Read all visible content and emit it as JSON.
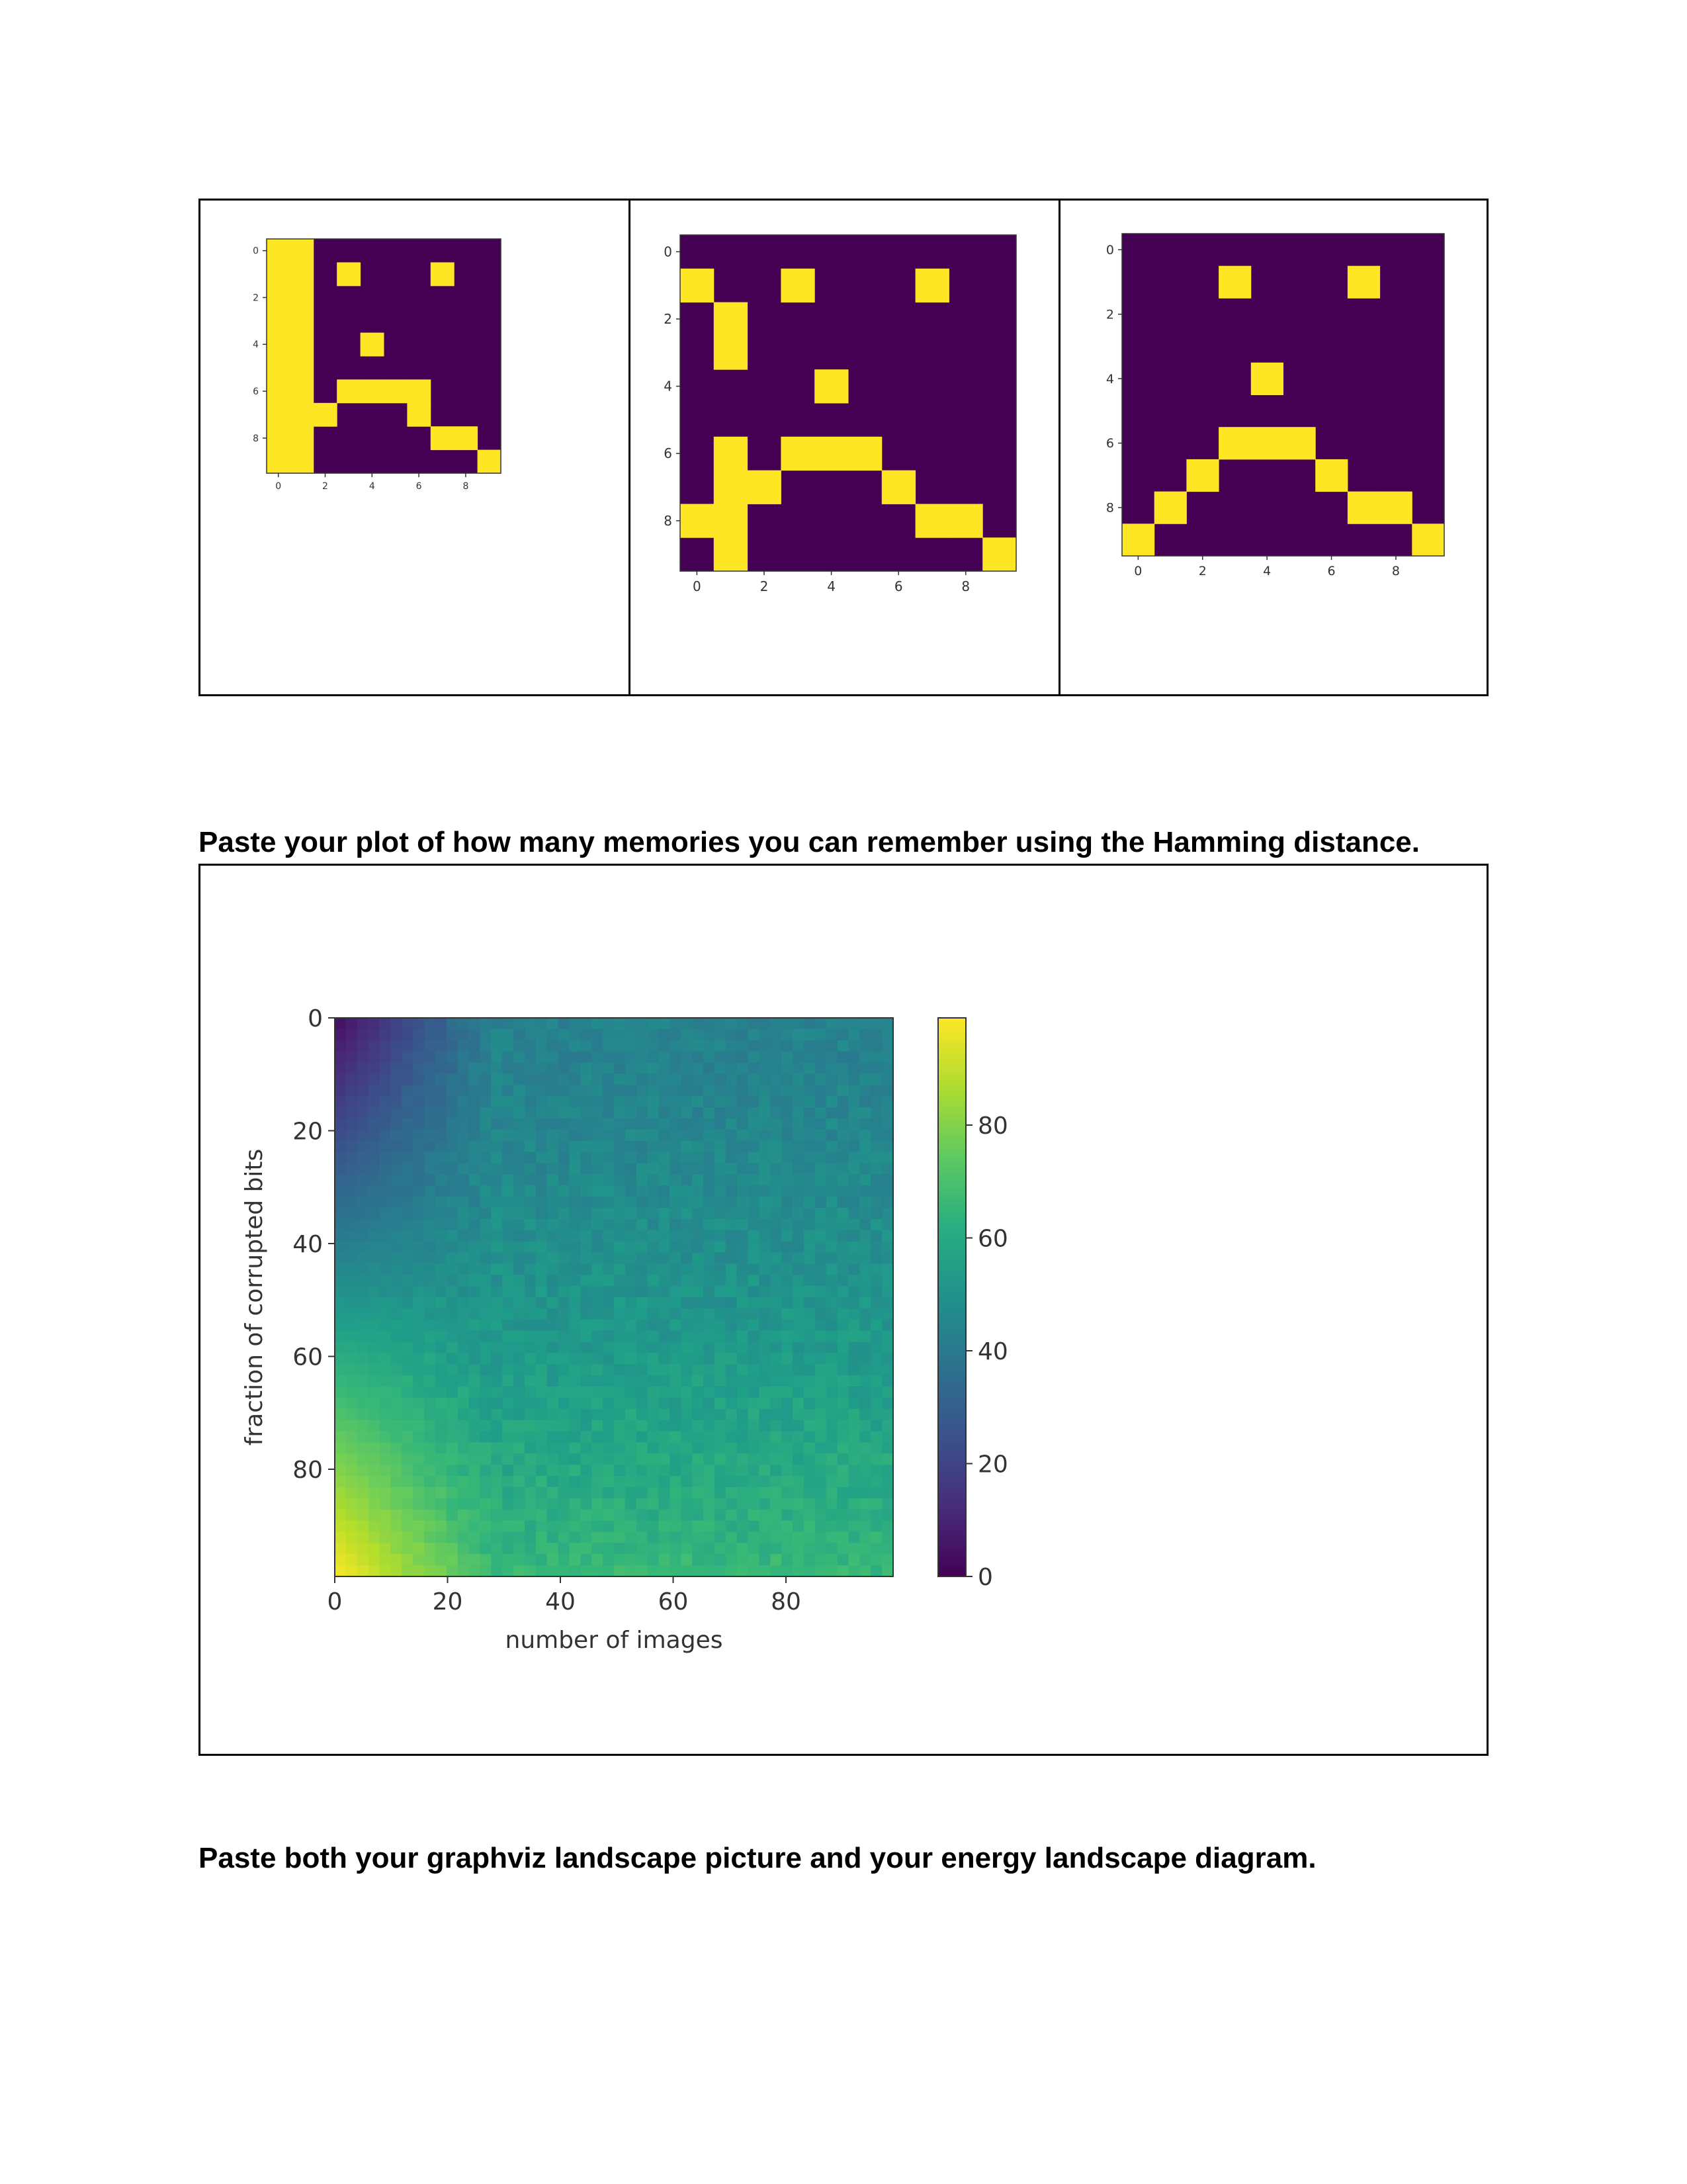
{
  "headings": {
    "hamming_plot": "Paste your plot of how many memories you can remember using the Hamming distance.",
    "graphviz": "Paste both your graphviz landscape picture and your energy landscape diagram."
  },
  "colors": {
    "viridis_low": "#440154",
    "viridis_high": "#fde725"
  },
  "chart_data": [
    {
      "type": "heatmap",
      "title": "",
      "xlabel": "",
      "ylabel": "",
      "x_ticks": [
        "0",
        "2",
        "4",
        "6",
        "8"
      ],
      "y_ticks": [
        "0",
        "2",
        "4",
        "6",
        "8"
      ],
      "grid_size": 10,
      "on_cells": [
        [
          0,
          0
        ],
        [
          0,
          1
        ],
        [
          0,
          2
        ],
        [
          0,
          3
        ],
        [
          0,
          4
        ],
        [
          0,
          5
        ],
        [
          0,
          6
        ],
        [
          0,
          7
        ],
        [
          0,
          8
        ],
        [
          0,
          9
        ],
        [
          1,
          0
        ],
        [
          1,
          1
        ],
        [
          1,
          2
        ],
        [
          1,
          3
        ],
        [
          1,
          4
        ],
        [
          1,
          5
        ],
        [
          1,
          6
        ],
        [
          1,
          7
        ],
        [
          1,
          8
        ],
        [
          1,
          9
        ],
        [
          3,
          1
        ],
        [
          7,
          1
        ],
        [
          4,
          4
        ],
        [
          3,
          6
        ],
        [
          4,
          6
        ],
        [
          5,
          6
        ],
        [
          6,
          6
        ],
        [
          2,
          7
        ],
        [
          6,
          7
        ],
        [
          7,
          8
        ],
        [
          8,
          8
        ],
        [
          9,
          9
        ]
      ]
    },
    {
      "type": "heatmap",
      "title": "",
      "xlabel": "",
      "ylabel": "",
      "x_ticks": [
        "0",
        "2",
        "4",
        "6",
        "8"
      ],
      "y_ticks": [
        "0",
        "2",
        "4",
        "6",
        "8"
      ],
      "grid_size": 10,
      "on_cells": [
        [
          0,
          1
        ],
        [
          3,
          1
        ],
        [
          7,
          1
        ],
        [
          1,
          2
        ],
        [
          1,
          3
        ],
        [
          4,
          4
        ],
        [
          1,
          6
        ],
        [
          3,
          6
        ],
        [
          4,
          6
        ],
        [
          5,
          6
        ],
        [
          1,
          7
        ],
        [
          2,
          7
        ],
        [
          6,
          7
        ],
        [
          0,
          8
        ],
        [
          1,
          8
        ],
        [
          7,
          8
        ],
        [
          8,
          8
        ],
        [
          1,
          9
        ],
        [
          9,
          9
        ]
      ]
    },
    {
      "type": "heatmap",
      "title": "",
      "xlabel": "",
      "ylabel": "",
      "x_ticks": [
        "0",
        "2",
        "4",
        "6",
        "8"
      ],
      "y_ticks": [
        "0",
        "2",
        "4",
        "6",
        "8"
      ],
      "grid_size": 10,
      "on_cells": [
        [
          3,
          1
        ],
        [
          7,
          1
        ],
        [
          4,
          4
        ],
        [
          3,
          6
        ],
        [
          4,
          6
        ],
        [
          5,
          6
        ],
        [
          2,
          7
        ],
        [
          6,
          7
        ],
        [
          1,
          8
        ],
        [
          7,
          8
        ],
        [
          8,
          8
        ],
        [
          0,
          9
        ],
        [
          9,
          9
        ]
      ]
    },
    {
      "type": "heatmap",
      "title": "",
      "xlabel": "number of images",
      "ylabel": "fraction of corrupted bits",
      "x_ticks": [
        "0",
        "20",
        "40",
        "60",
        "80"
      ],
      "y_ticks": [
        "0",
        "20",
        "40",
        "60",
        "80"
      ],
      "xlim": [
        0,
        99
      ],
      "ylim": [
        0,
        99
      ],
      "colorbar": {
        "min": 0,
        "max": 99,
        "ticks": [
          "0",
          "20",
          "40",
          "60",
          "80"
        ]
      },
      "value_summary": "values near 0 at top-left (few images, few corrupted bits), rising to about 99 at bottom-left (few images, many corrupted bits); for more than about 25 images values level off near 45 at top and 60-70 at bottom"
    }
  ]
}
